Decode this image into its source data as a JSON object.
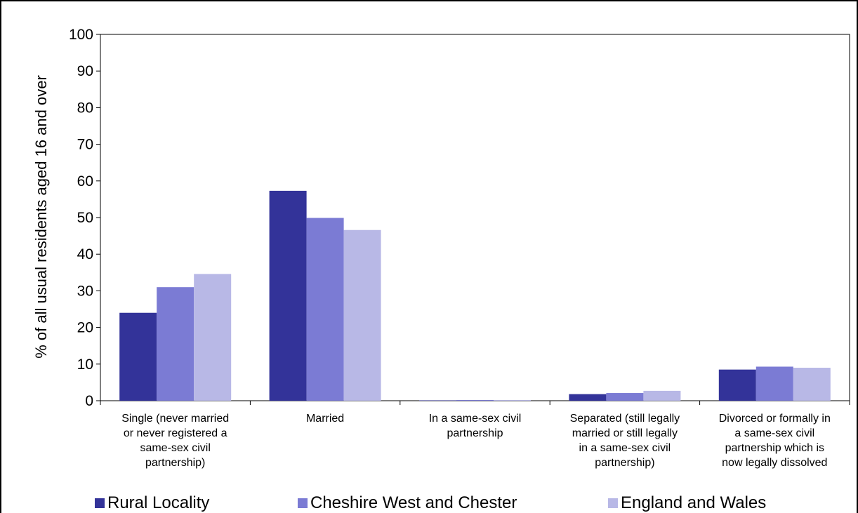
{
  "chart_data": {
    "type": "bar",
    "title": "",
    "xlabel": "",
    "ylabel": "% of all usual residents aged 16 and over",
    "ylim": [
      0,
      100
    ],
    "yticks": [
      0,
      10,
      20,
      30,
      40,
      50,
      60,
      70,
      80,
      90,
      100
    ],
    "grid": false,
    "legend_position": "bottom",
    "categories": [
      "Single (never married\nor never registered a\nsame-sex civil\npartnership)",
      "Married",
      "In a same-sex civil\npartnership",
      "Separated (still legally\nmarried or still legally\nin a same-sex civil\npartnership)",
      "Divorced or formally in\na same-sex civil\npartnership which is\nnow legally dissolved"
    ],
    "series": [
      {
        "name": "Rural Locality",
        "color": "#333399",
        "values": [
          24.0,
          57.3,
          0.1,
          1.8,
          8.5
        ]
      },
      {
        "name": "Cheshire West and Chester",
        "color": "#7b7bd4",
        "values": [
          31.0,
          49.9,
          0.2,
          2.1,
          9.3
        ]
      },
      {
        "name": "England and Wales",
        "color": "#b8b8e6",
        "values": [
          34.6,
          46.6,
          0.2,
          2.7,
          9.0
        ]
      }
    ]
  }
}
